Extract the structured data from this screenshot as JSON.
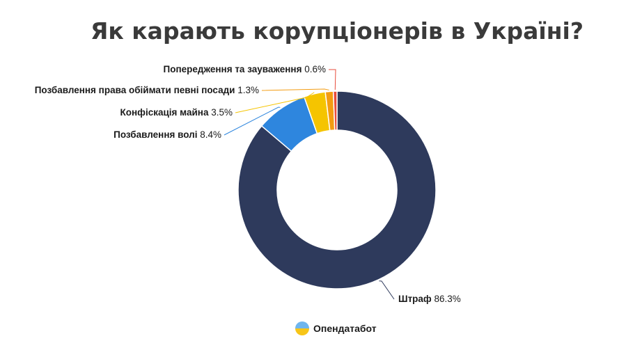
{
  "title": "Як карають корупціонерів в Україні?",
  "brand": {
    "name": "Опендатабот",
    "icon": "opendatabot-logo-icon"
  },
  "chart_data": {
    "type": "pie",
    "variant": "donut",
    "title": "Як карають корупціонерів в Україні?",
    "slices": [
      {
        "label": "Штраф",
        "value": 86.3,
        "value_label": "86.3%",
        "color": "#2e3a5c"
      },
      {
        "label": "Позбавлення волі",
        "value": 8.4,
        "value_label": "8.4%",
        "color": "#2e86de"
      },
      {
        "label": "Конфіскація майна",
        "value": 3.5,
        "value_label": "3.5%",
        "color": "#f5c400"
      },
      {
        "label": "Позбавлення права обіймати певні посади",
        "value": 1.3,
        "value_label": "1.3%",
        "color": "#f39c12"
      },
      {
        "label": "Попередження та зауваження",
        "value": 0.6,
        "value_label": "0.6%",
        "color": "#e74c3c"
      }
    ]
  }
}
